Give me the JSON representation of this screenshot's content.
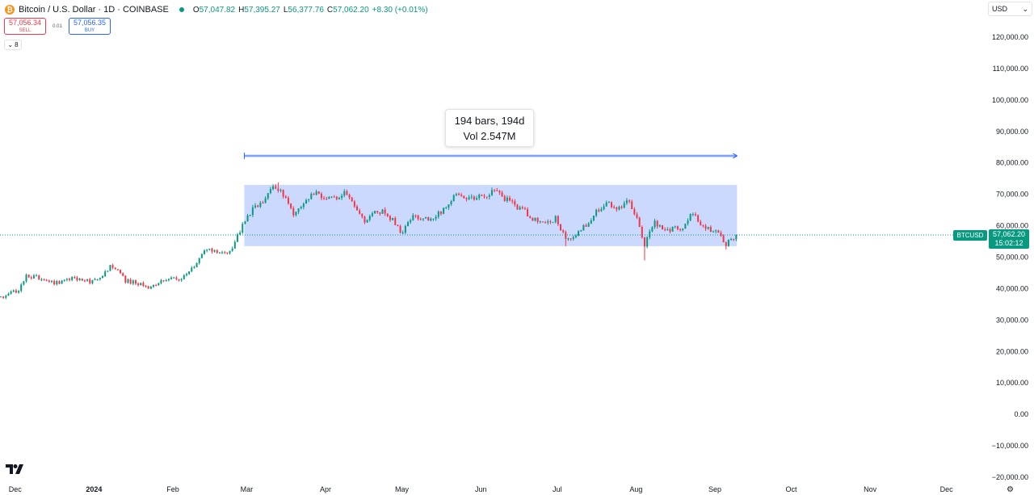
{
  "header": {
    "icon_glyph": "₿",
    "icon": "bitcoin-icon",
    "title": "Bitcoin / U.S. Dollar · 1D · COINBASE",
    "ohlc": [
      {
        "label": "O",
        "value": "57,047.82"
      },
      {
        "label": "H",
        "value": "57,395.27"
      },
      {
        "label": "L",
        "value": "56,377.76"
      },
      {
        "label": "C",
        "value": "57,062.20"
      }
    ],
    "change": "+8.30 (+0.01%)"
  },
  "trade": {
    "sell_price": "57,056.34",
    "sell_label": "SELL",
    "spread": "0.01",
    "buy_price": "57,056.35",
    "buy_label": "BUY"
  },
  "indicators_toggle": {
    "count": "8",
    "icon": "chevron-down-icon"
  },
  "currency": {
    "value": "USD",
    "icon": "chevron-down-icon"
  },
  "measure": {
    "line1": "194 bars, 194d",
    "line2": "Vol 2.547M"
  },
  "last_price": {
    "symbol": "BTCUSD",
    "price": "57,062.20",
    "countdown": "15:02:12"
  },
  "colors": {
    "up": "#089981",
    "down": "#f23645",
    "measure_fill": "#2962ff",
    "text": "#131722"
  },
  "chart_data": {
    "type": "candlestick",
    "symbol": "BTCUSD",
    "interval": "1D",
    "yaxis": {
      "ylim": [
        -20000,
        120000
      ],
      "ticks": [
        -20000,
        -10000,
        0,
        10000,
        20000,
        30000,
        40000,
        50000,
        60000,
        70000,
        80000,
        90000,
        100000,
        110000,
        120000
      ],
      "tick_labels": [
        "−20,000.00",
        "−10,000.00",
        "0.00",
        "10,000.00",
        "20,000.00",
        "30,000.00",
        "40,000.00",
        "50,000.00",
        "60,000.00",
        "70,000.00",
        "80,000.00",
        "90,000.00",
        "100,000.00",
        "110,000.00",
        "120,000.00"
      ]
    },
    "xaxis": {
      "range": [
        "2023-11-26",
        "2024-12-31"
      ],
      "ticks": [
        {
          "date": "2023-12-01",
          "label": "Dec"
        },
        {
          "date": "2024-01-01",
          "label": "2024"
        },
        {
          "date": "2024-02-01",
          "label": "Feb"
        },
        {
          "date": "2024-03-01",
          "label": "Mar"
        },
        {
          "date": "2024-04-01",
          "label": "Apr"
        },
        {
          "date": "2024-05-01",
          "label": "May"
        },
        {
          "date": "2024-06-01",
          "label": "Jun"
        },
        {
          "date": "2024-07-01",
          "label": "Jul"
        },
        {
          "date": "2024-08-01",
          "label": "Aug"
        },
        {
          "date": "2024-09-01",
          "label": "Sep"
        },
        {
          "date": "2024-10-01",
          "label": "Oct"
        },
        {
          "date": "2024-11-01",
          "label": "Nov"
        },
        {
          "date": "2024-12-01",
          "label": "Dec"
        }
      ]
    },
    "last_close": 57062.2,
    "measure_range": {
      "start": "2024-03-01",
      "end": "2024-09-10",
      "low": 53500,
      "high": 73000,
      "bars": 194
    },
    "close_path": [
      [
        "2023-11-26",
        37300
      ],
      [
        "2023-12-03",
        39500
      ],
      [
        "2023-12-06",
        44000
      ],
      [
        "2023-12-10",
        43800
      ],
      [
        "2023-12-17",
        41500
      ],
      [
        "2023-12-24",
        43300
      ],
      [
        "2023-12-31",
        42300
      ],
      [
        "2024-01-03",
        42800
      ],
      [
        "2024-01-08",
        47000
      ],
      [
        "2024-01-11",
        46200
      ],
      [
        "2024-01-14",
        42500
      ],
      [
        "2024-01-20",
        41600
      ],
      [
        "2024-01-23",
        39500
      ],
      [
        "2024-01-27",
        42000
      ],
      [
        "2024-02-01",
        43000
      ],
      [
        "2024-02-05",
        42800
      ],
      [
        "2024-02-10",
        47500
      ],
      [
        "2024-02-14",
        51800
      ],
      [
        "2024-02-18",
        52200
      ],
      [
        "2024-02-24",
        51500
      ],
      [
        "2024-02-27",
        57000
      ],
      [
        "2024-03-01",
        62000
      ],
      [
        "2024-03-05",
        66000
      ],
      [
        "2024-03-09",
        69000
      ],
      [
        "2024-03-13",
        72500
      ],
      [
        "2024-03-16",
        69500
      ],
      [
        "2024-03-20",
        63500
      ],
      [
        "2024-03-24",
        67000
      ],
      [
        "2024-03-28",
        70800
      ],
      [
        "2024-04-05",
        68200
      ],
      [
        "2024-04-09",
        71200
      ],
      [
        "2024-04-13",
        67000
      ],
      [
        "2024-04-17",
        61500
      ],
      [
        "2024-04-21",
        64900
      ],
      [
        "2024-04-25",
        64500
      ],
      [
        "2024-04-30",
        60000
      ],
      [
        "2024-05-01",
        57000
      ],
      [
        "2024-05-06",
        63000
      ],
      [
        "2024-05-13",
        61500
      ],
      [
        "2024-05-20",
        66500
      ],
      [
        "2024-05-23",
        70800
      ],
      [
        "2024-05-28",
        68500
      ],
      [
        "2024-06-03",
        69500
      ],
      [
        "2024-06-07",
        71000
      ],
      [
        "2024-06-12",
        68000
      ],
      [
        "2024-06-18",
        65000
      ],
      [
        "2024-06-24",
        61000
      ],
      [
        "2024-06-28",
        60500
      ],
      [
        "2024-07-01",
        62500
      ],
      [
        "2024-07-05",
        56000
      ],
      [
        "2024-07-10",
        57500
      ],
      [
        "2024-07-15",
        62500
      ],
      [
        "2024-07-21",
        67500
      ],
      [
        "2024-07-25",
        65000
      ],
      [
        "2024-07-29",
        68500
      ],
      [
        "2024-08-01",
        64500
      ],
      [
        "2024-08-05",
        54000
      ],
      [
        "2024-08-09",
        60800
      ],
      [
        "2024-08-14",
        58800
      ],
      [
        "2024-08-20",
        59500
      ],
      [
        "2024-08-24",
        64000
      ],
      [
        "2024-08-27",
        59500
      ],
      [
        "2024-09-02",
        58000
      ],
      [
        "2024-09-06",
        54000
      ],
      [
        "2024-09-10",
        57062
      ]
    ],
    "wick_extremes": [
      {
        "date": "2024-03-14",
        "high": 73800
      },
      {
        "date": "2024-07-05",
        "low": 53500
      },
      {
        "date": "2024-08-05",
        "low": 49000
      },
      {
        "date": "2024-09-06",
        "low": 52500
      }
    ]
  }
}
